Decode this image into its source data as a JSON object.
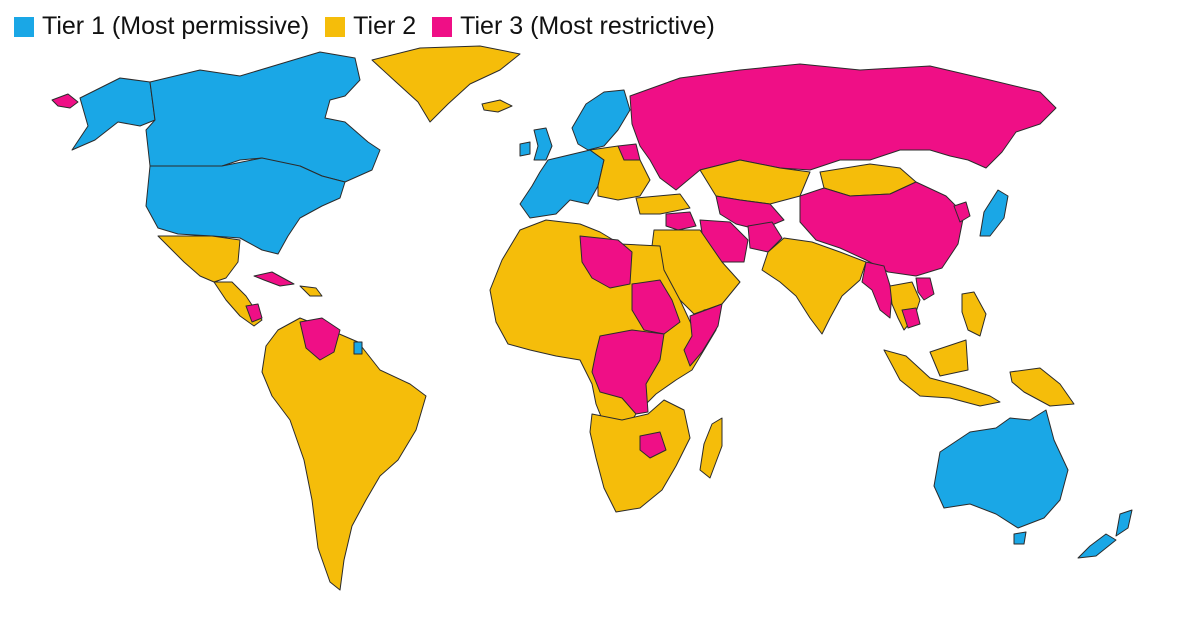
{
  "colors": {
    "tier1": "#1aa7e6",
    "tier2": "#f5bd0a",
    "tier3": "#ef0f86"
  },
  "legend": [
    {
      "key": "tier1",
      "label": "Tier 1 (Most permissive)"
    },
    {
      "key": "tier2",
      "label": "Tier 2"
    },
    {
      "key": "tier3",
      "label": "Tier 3 (Most restrictive)"
    }
  ],
  "regions": [
    {
      "name": "alaska",
      "tier": "tier1"
    },
    {
      "name": "canada",
      "tier": "tier1"
    },
    {
      "name": "usa",
      "tier": "tier1"
    },
    {
      "name": "greenland",
      "tier": "tier2"
    },
    {
      "name": "iceland",
      "tier": "tier2"
    },
    {
      "name": "chukotka",
      "tier": "tier3"
    },
    {
      "name": "mexico",
      "tier": "tier2"
    },
    {
      "name": "central-america",
      "tier": "tier2"
    },
    {
      "name": "nicaragua",
      "tier": "tier3"
    },
    {
      "name": "cuba",
      "tier": "tier3"
    },
    {
      "name": "caribbean",
      "tier": "tier2"
    },
    {
      "name": "south-america",
      "tier": "tier2"
    },
    {
      "name": "venezuela",
      "tier": "tier3"
    },
    {
      "name": "french-guiana",
      "tier": "tier1"
    },
    {
      "name": "western-europe",
      "tier": "tier1"
    },
    {
      "name": "scandinavia",
      "tier": "tier1"
    },
    {
      "name": "uk",
      "tier": "tier1"
    },
    {
      "name": "ireland",
      "tier": "tier1"
    },
    {
      "name": "eastern-europe",
      "tier": "tier2"
    },
    {
      "name": "belarus",
      "tier": "tier3"
    },
    {
      "name": "russia",
      "tier": "tier3"
    },
    {
      "name": "turkey",
      "tier": "tier2"
    },
    {
      "name": "kazakhstan",
      "tier": "tier2"
    },
    {
      "name": "mongolia",
      "tier": "tier2"
    },
    {
      "name": "china",
      "tier": "tier3"
    },
    {
      "name": "central-asia",
      "tier": "tier3"
    },
    {
      "name": "iran",
      "tier": "tier3"
    },
    {
      "name": "afghanistan",
      "tier": "tier3"
    },
    {
      "name": "syria",
      "tier": "tier3"
    },
    {
      "name": "middle-east",
      "tier": "tier2"
    },
    {
      "name": "pakistan-india",
      "tier": "tier2"
    },
    {
      "name": "myanmar",
      "tier": "tier3"
    },
    {
      "name": "southeast-asia",
      "tier": "tier2"
    },
    {
      "name": "cambodia",
      "tier": "tier3"
    },
    {
      "name": "vietnam",
      "tier": "tier3"
    },
    {
      "name": "japan",
      "tier": "tier1"
    },
    {
      "name": "korea-north",
      "tier": "tier3"
    },
    {
      "name": "philippines",
      "tier": "tier2"
    },
    {
      "name": "indonesia",
      "tier": "tier2"
    },
    {
      "name": "png",
      "tier": "tier2"
    },
    {
      "name": "north-africa",
      "tier": "tier2"
    },
    {
      "name": "libya",
      "tier": "tier3"
    },
    {
      "name": "sudan",
      "tier": "tier3"
    },
    {
      "name": "somalia",
      "tier": "tier3"
    },
    {
      "name": "central-africa",
      "tier": "tier3"
    },
    {
      "name": "southern-africa",
      "tier": "tier2"
    },
    {
      "name": "zimbabwe",
      "tier": "tier3"
    },
    {
      "name": "madagascar",
      "tier": "tier2"
    },
    {
      "name": "australia",
      "tier": "tier1"
    },
    {
      "name": "tasmania",
      "tier": "tier1"
    },
    {
      "name": "new-zealand",
      "tier": "tier1"
    }
  ]
}
